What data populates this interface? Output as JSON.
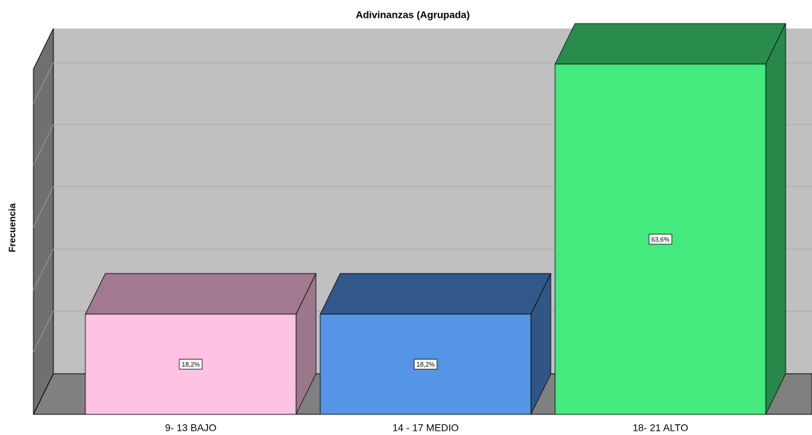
{
  "chart_data": {
    "type": "bar3d",
    "title": "Adivinanzas (Agrupada)",
    "y_label": "Frecuencia",
    "categories": [
      "9- 13 BAJO",
      "14 - 17 MEDIO",
      "18- 21 ALTO"
    ],
    "values": [
      18.2,
      18.2,
      63.6
    ],
    "value_labels": [
      "18,2%",
      "18,2%",
      "63,6%"
    ],
    "colors": [
      "#ffc2e3",
      "#5595e6",
      "#44ea7e"
    ]
  }
}
